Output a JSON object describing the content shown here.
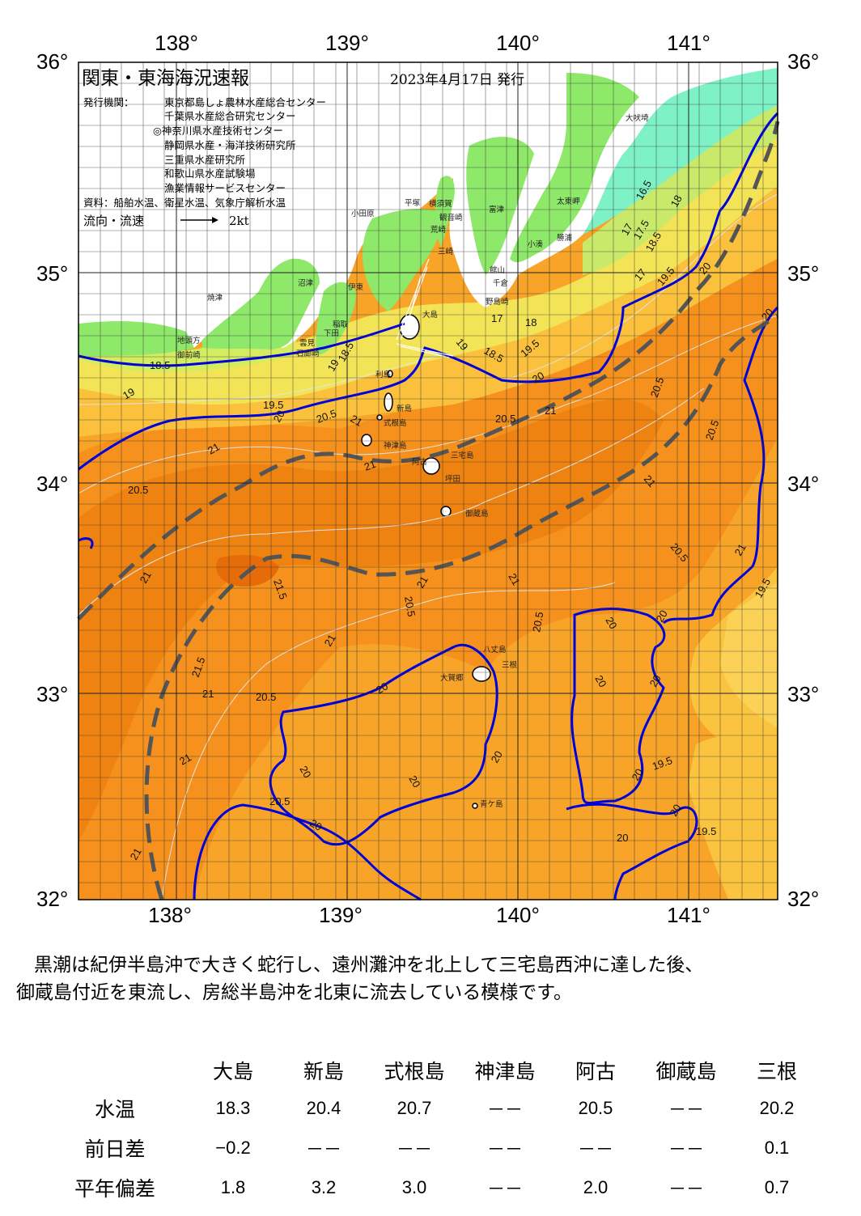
{
  "title": "関東・東海海況速報",
  "date": "2023年4月17日 発行",
  "issuer_label": "発行機関：",
  "issuers": [
    "東京都島しょ農林水産総合センター",
    "千葉県水産総合研究センター",
    "◎神奈川県水産技術センター",
    "静岡県水産・海洋技術研究所",
    "三重県水産研究所",
    "和歌山県水産試験場",
    "漁業情報サービスセンター"
  ],
  "sources": "資料：船舶水温、衛星水温、気象庁解析水温",
  "flow_label": "流向・流速",
  "flow_scale": "2kt",
  "lon_labels": [
    "138°",
    "139°",
    "140°",
    "141°"
  ],
  "lat_labels": [
    "36°",
    "35°",
    "34°",
    "33°",
    "32°"
  ],
  "place_names": [
    "大吠埼",
    "太東岬",
    "勝浦",
    "小湊",
    "富津",
    "横須賀",
    "観音崎",
    "荒崎",
    "三崎",
    "館山",
    "千倉",
    "野島崎",
    "平塚",
    "小田原",
    "伊東",
    "沼津",
    "焼津",
    "御前崎",
    "地頭方",
    "稲取",
    "下田",
    "石廊崎",
    "雲見",
    "大島",
    "利島",
    "新島",
    "式根島",
    "神津島",
    "三宅島",
    "阿古",
    "坪田",
    "御蔵島",
    "八丈島",
    "三根",
    "大賀郷",
    "青ケ島"
  ],
  "isotherm_labels": [
    "16.5",
    "17",
    "17.5",
    "18",
    "18.5",
    "19",
    "19.5",
    "20",
    "20.5",
    "21",
    "21.5"
  ],
  "summary_line1": "黒潮は紀伊半島沖で大きく蛇行し、遠州灘沖を北上して三宅島西沖に達した後、",
  "summary_line2": "御蔵島付近を東流し、房総半島沖を北東に流去している模様です。",
  "table": {
    "columns": [
      "大島",
      "新島",
      "式根島",
      "神津島",
      "阿古",
      "御蔵島",
      "三根"
    ],
    "rows": [
      {
        "label": "水温",
        "values": [
          "18.3",
          "20.4",
          "20.7",
          "－－",
          "20.5",
          "－－",
          "20.2"
        ]
      },
      {
        "label": "前日差",
        "values": [
          "−0.2",
          "－－",
          "－－",
          "－－",
          "－－",
          "－－",
          "0.1"
        ]
      },
      {
        "label": "平年偏差",
        "values": [
          "1.8",
          "3.2",
          "3.0",
          "－－",
          "2.0",
          "－－",
          "0.7"
        ]
      }
    ]
  },
  "colors": {
    "sea_warm": "#f7a428",
    "sea_warmer": "#f58d1a",
    "sea_core": "#ee7f10",
    "sea_cool": "#fbc848",
    "sea_cold": "#f4ec5a",
    "land": "#88e86a",
    "current_line": "#0000dd",
    "kuroshio_axis": "#555555"
  }
}
